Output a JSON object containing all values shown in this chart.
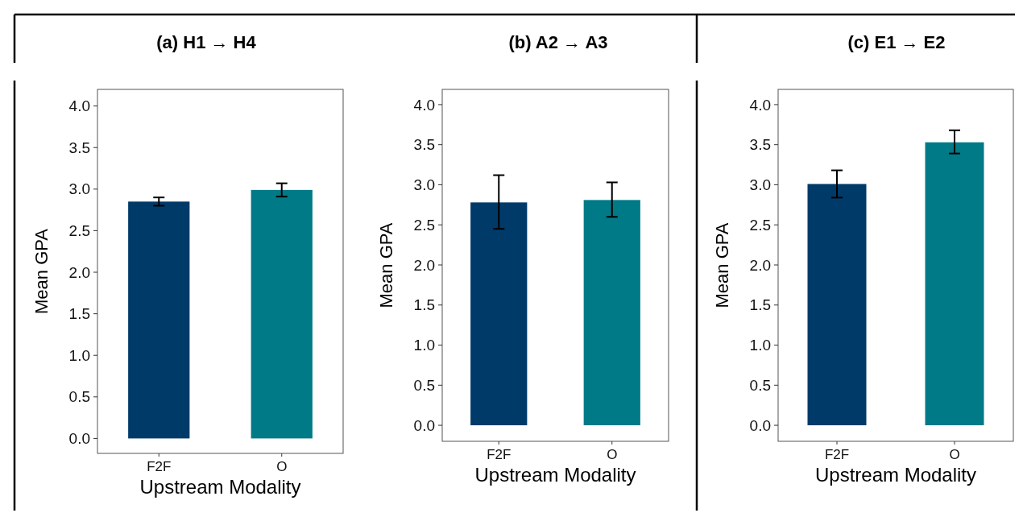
{
  "chart_data": [
    {
      "type": "bar",
      "title": "(a)  H1 → H4",
      "xlabel": "Upstream Modality",
      "ylabel": "Mean GPA",
      "categories": [
        "F2F",
        "O"
      ],
      "values": [
        2.85,
        2.99
      ],
      "colors": [
        "#003a69",
        "#007a87"
      ],
      "errors": [
        [
          2.8,
          2.9
        ],
        [
          2.91,
          3.07
        ]
      ],
      "ylim": [
        -0.18,
        4.2
      ],
      "yticks": [
        {
          "value": 0,
          "label": "0.0"
        },
        {
          "value": 0.5,
          "label": "0.5"
        },
        {
          "value": 1,
          "label": "1.0"
        },
        {
          "value": 1.5,
          "label": "1.5"
        },
        {
          "value": 2,
          "label": "2.0"
        },
        {
          "value": 2.5,
          "label": "2.5"
        },
        {
          "value": 3,
          "label": "3.0"
        },
        {
          "value": 3.5,
          "label": "3.5"
        },
        {
          "value": 4,
          "label": "4.0"
        }
      ],
      "grid": false
    },
    {
      "type": "bar",
      "title": "(b)  A2 → A3",
      "xlabel": "Upstream Modality",
      "ylabel": "Mean GPA",
      "categories": [
        "F2F",
        "O"
      ],
      "values": [
        2.78,
        2.81
      ],
      "colors": [
        "#003a69",
        "#007a87"
      ],
      "errors": [
        [
          2.45,
          3.12
        ],
        [
          2.6,
          3.03
        ]
      ],
      "ylim": [
        -0.2,
        4.19
      ],
      "yticks": [
        {
          "value": 0,
          "label": "0.0"
        },
        {
          "value": 0.5,
          "label": "0.5"
        },
        {
          "value": 1,
          "label": "1.0"
        },
        {
          "value": 1.5,
          "label": "1.5"
        },
        {
          "value": 2,
          "label": "2.0"
        },
        {
          "value": 2.5,
          "label": "2.5"
        },
        {
          "value": 3,
          "label": "3.0"
        },
        {
          "value": 3.5,
          "label": "3.5"
        },
        {
          "value": 4,
          "label": "4.0"
        }
      ],
      "grid": false
    },
    {
      "type": "bar",
      "title": "(c) E1 → E2",
      "xlabel": "Upstream Modality",
      "ylabel": "Mean GPA",
      "categories": [
        "F2F",
        "O"
      ],
      "values": [
        3.01,
        3.53
      ],
      "colors": [
        "#003a69",
        "#007a87"
      ],
      "errors": [
        [
          2.84,
          3.18
        ],
        [
          3.39,
          3.68
        ]
      ],
      "ylim": [
        -0.2,
        4.19
      ],
      "yticks": [
        {
          "value": 0,
          "label": "0.0"
        },
        {
          "value": 0.5,
          "label": "0.5"
        },
        {
          "value": 1,
          "label": "1.0"
        },
        {
          "value": 1.5,
          "label": "1.5"
        },
        {
          "value": 2,
          "label": "2.0"
        },
        {
          "value": 2.5,
          "label": "2.5"
        },
        {
          "value": 3,
          "label": "3.0"
        },
        {
          "value": 3.5,
          "label": "3.5"
        },
        {
          "value": 4,
          "label": "4.0"
        }
      ],
      "grid": false
    }
  ]
}
